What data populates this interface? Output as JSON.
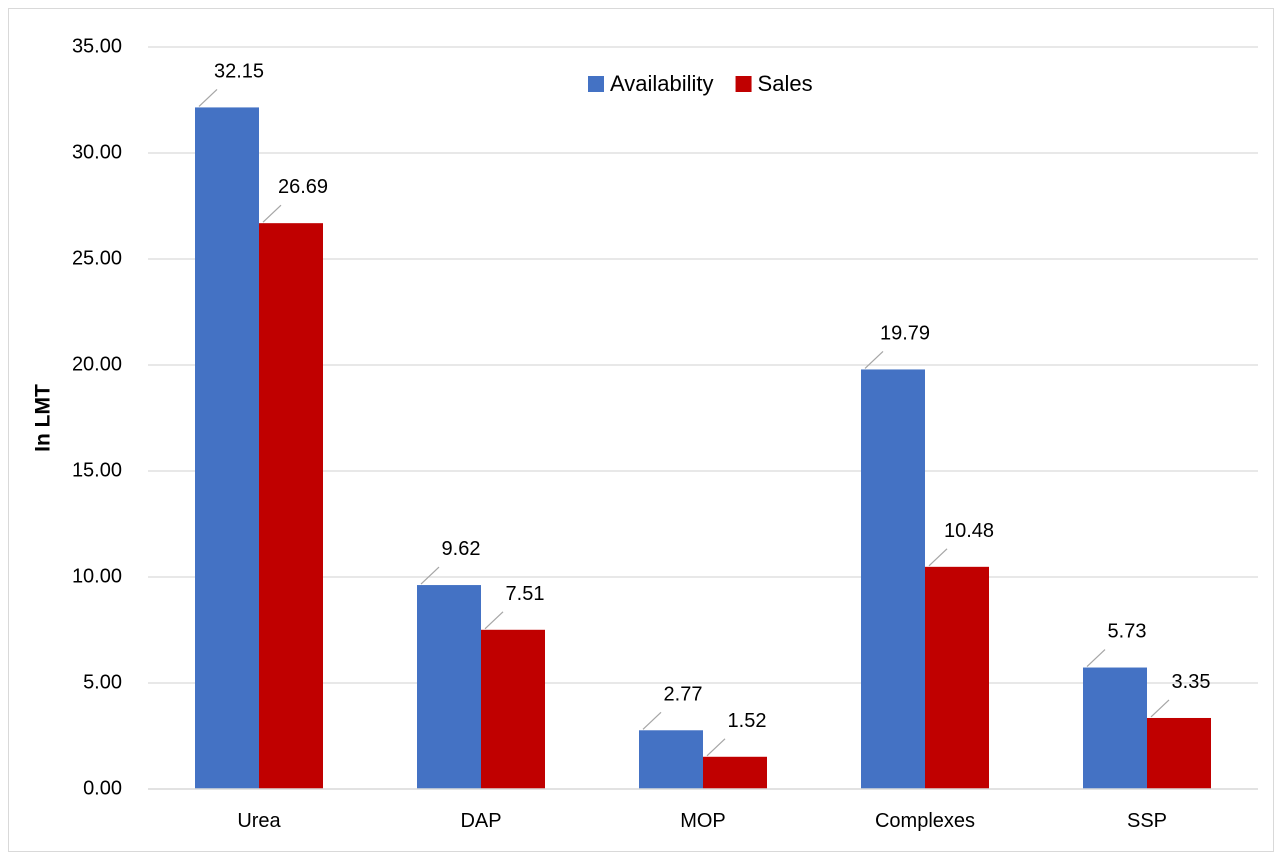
{
  "chart_data": {
    "type": "bar",
    "title": "",
    "xlabel": "",
    "ylabel": "In LMT",
    "ylim": [
      0,
      35
    ],
    "yticks": [
      "0.00",
      "5.00",
      "10.00",
      "15.00",
      "20.00",
      "25.00",
      "30.00",
      "35.00"
    ],
    "grid": true,
    "legend_position": "top-center",
    "categories": [
      "Urea",
      "DAP",
      "MOP",
      "Complexes",
      "SSP"
    ],
    "series": [
      {
        "name": "Availability",
        "color": "#4472C4",
        "values": [
          32.15,
          9.62,
          2.77,
          19.79,
          5.73
        ],
        "labels": [
          "32.15",
          "9.62",
          "2.77",
          "19.79",
          "5.73"
        ]
      },
      {
        "name": "Sales",
        "color": "#C00000",
        "values": [
          26.69,
          7.51,
          1.52,
          10.48,
          3.35
        ],
        "labels": [
          "26.69",
          "7.51",
          "1.52",
          "10.48",
          "3.35"
        ]
      }
    ]
  }
}
